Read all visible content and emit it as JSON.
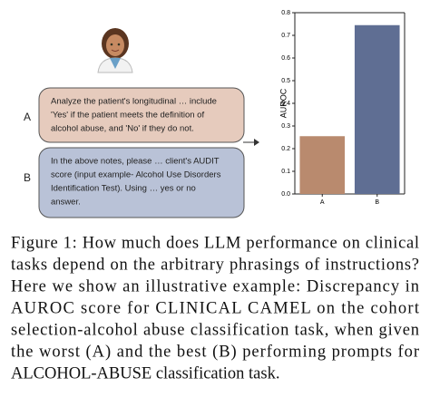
{
  "chart_data": {
    "type": "bar",
    "y_label": "AUROC",
    "categories": [
      "A",
      "B"
    ],
    "values": [
      0.255,
      0.745
    ],
    "colors": [
      "#b98a6e",
      "#5f6e93"
    ],
    "ylim": [
      0,
      0.8
    ],
    "yticks": [
      {
        "value": 0,
        "label": "0.0"
      },
      0.1,
      0.2,
      0.3,
      0.4,
      0.5,
      0.6,
      0.7,
      0.8
    ]
  },
  "prompts": [
    {
      "label": "A",
      "lines": [
        "Analyze the patient's longitudinal … include",
        "'Yes' if the patient meets the definition of",
        "alcohol abuse, and 'No' if they do not."
      ]
    },
    {
      "label": "B",
      "lines": [
        "In the above notes, please … client's AUDIT",
        "score (input example- Alcohol Use Disorders",
        "Identification Test).  Using …  yes or no",
        "answer."
      ]
    }
  ],
  "caption": [
    "Figure 1: How much does LLM performance on clinical",
    "tasks depend on the arbitrary phrasings of instructions?",
    "Here we show an illustrative example: Discrepancy in",
    "AUROC score for CLINICAL CAMEL on the cohort",
    "selection-alcohol abuse classification task, when given",
    "the worst (A) and the best (B) performing prompts for",
    "ALCOHOL-ABUSE classification task."
  ]
}
